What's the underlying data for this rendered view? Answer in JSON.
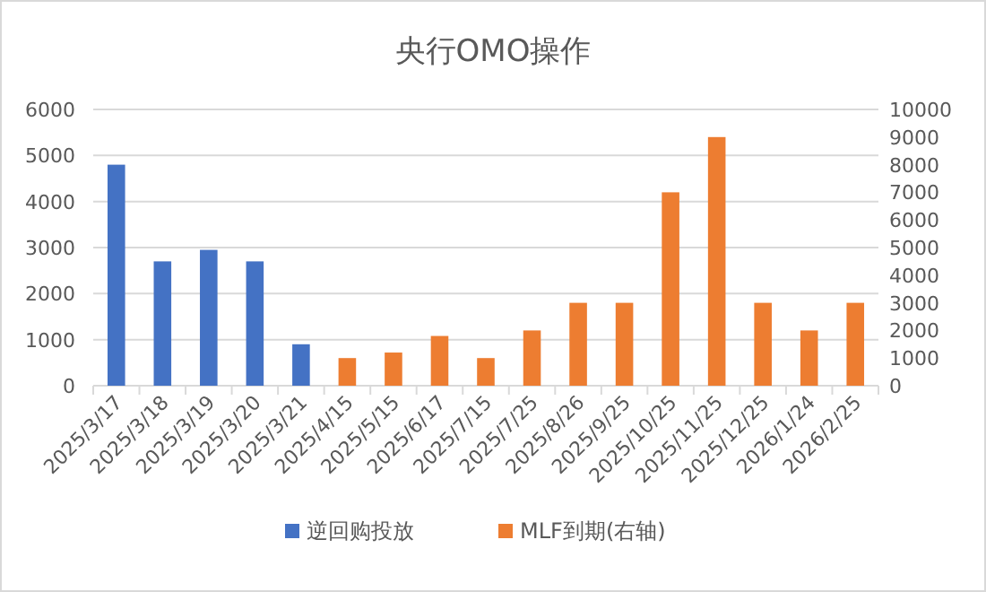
{
  "chart_data": {
    "type": "bar",
    "title": "央行OMO操作",
    "categories": [
      "2025/3/17",
      "2025/3/18",
      "2025/3/19",
      "2025/3/20",
      "2025/3/21",
      "2025/4/15",
      "2025/5/15",
      "2025/6/17",
      "2025/7/15",
      "2025/7/25",
      "2025/8/26",
      "2025/9/25",
      "2025/10/25",
      "2025/11/25",
      "2025/12/25",
      "2026/1/24",
      "2026/2/25"
    ],
    "series": [
      {
        "name": "逆回购投放",
        "color": "#4472c4",
        "values": [
          4800,
          2700,
          2950,
          2700,
          900,
          null,
          null,
          null,
          null,
          null,
          null,
          null,
          null,
          null,
          null,
          null,
          null
        ]
      },
      {
        "name": "MLF到期(右轴)",
        "color": "#ed7d31",
        "axis": "y2",
        "values": [
          null,
          null,
          null,
          null,
          null,
          1000,
          1200,
          1800,
          1000,
          2000,
          3000,
          3000,
          7000,
          9000,
          3000,
          2000,
          3000
        ]
      }
    ],
    "ylim": [
      0,
      6000
    ],
    "yticks": [
      0,
      1000,
      2000,
      3000,
      4000,
      5000,
      6000
    ],
    "y2lim": [
      0,
      10000
    ],
    "y2ticks": [
      0,
      1000,
      2000,
      3000,
      4000,
      5000,
      6000,
      7000,
      8000,
      9000,
      10000
    ],
    "grid": "y",
    "legend": "bottom"
  }
}
